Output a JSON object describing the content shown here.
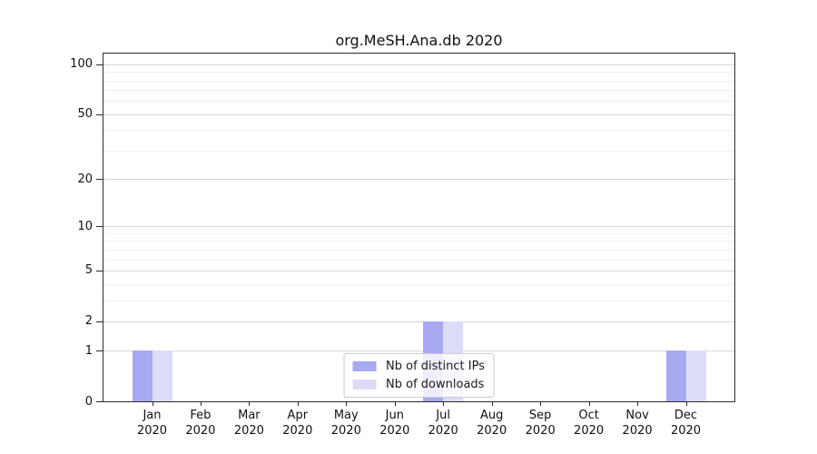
{
  "chart_data": {
    "type": "bar",
    "title": "org.MeSH.Ana.db 2020",
    "categories": [
      {
        "month": "Jan",
        "year": "2020"
      },
      {
        "month": "Feb",
        "year": "2020"
      },
      {
        "month": "Mar",
        "year": "2020"
      },
      {
        "month": "Apr",
        "year": "2020"
      },
      {
        "month": "May",
        "year": "2020"
      },
      {
        "month": "Jun",
        "year": "2020"
      },
      {
        "month": "Jul",
        "year": "2020"
      },
      {
        "month": "Aug",
        "year": "2020"
      },
      {
        "month": "Sep",
        "year": "2020"
      },
      {
        "month": "Oct",
        "year": "2020"
      },
      {
        "month": "Nov",
        "year": "2020"
      },
      {
        "month": "Dec",
        "year": "2020"
      }
    ],
    "series": [
      {
        "name": "Nb of distinct IPs",
        "color": "#a9a9f1",
        "values": [
          1,
          0,
          0,
          0,
          0,
          0,
          2,
          0,
          0,
          0,
          0,
          1
        ]
      },
      {
        "name": "Nb of downloads",
        "color": "#dcdcf9",
        "values": [
          1,
          0,
          0,
          0,
          0,
          0,
          2,
          0,
          0,
          0,
          0,
          1
        ]
      }
    ],
    "yscale": "log1p",
    "ylim": [
      0,
      116
    ],
    "yticks": [
      0,
      1,
      2,
      5,
      10,
      20,
      50,
      100
    ],
    "minor_gridlines": [
      3,
      4,
      6,
      7,
      8,
      9,
      30,
      40,
      60,
      70,
      80,
      90
    ],
    "grid": true,
    "legend_position": "lower center inside",
    "colors": {
      "major_grid": "#d6d6d6",
      "minor_grid": "#f0f0f0",
      "axis_frame": "#2b2b2b",
      "background": "#ffffff"
    }
  }
}
